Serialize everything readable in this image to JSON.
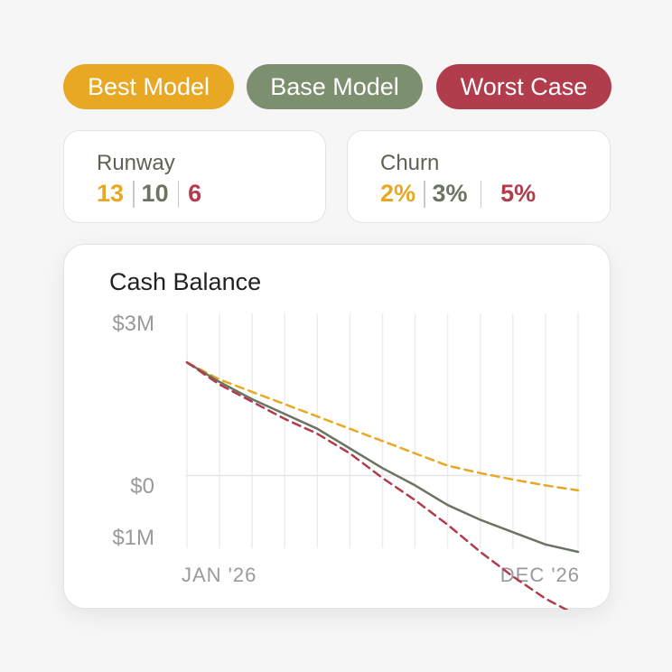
{
  "legend": [
    {
      "key": "best",
      "label": "Best Model",
      "color": "#e8a823"
    },
    {
      "key": "base",
      "label": "Base Model",
      "color": "#7c8f6f"
    },
    {
      "key": "worst",
      "label": "Worst Case",
      "color": "#b13c4c"
    }
  ],
  "stats": {
    "runway": {
      "title": "Runway",
      "values": [
        "13",
        "10",
        "6"
      ]
    },
    "churn": {
      "title": "Churn",
      "values": [
        "2%",
        "3%",
        "5%"
      ]
    }
  },
  "chart_data": {
    "type": "line",
    "title": "Cash Balance",
    "ytick_labels": [
      "$3M",
      "$0",
      "$1M"
    ],
    "xtick_labels": [
      "JAN '26",
      "DEC '26"
    ],
    "x": [
      1,
      2,
      3,
      4,
      5,
      6,
      7,
      8,
      9,
      10,
      11,
      12,
      13
    ],
    "ylim": [
      -1.0,
      3.0
    ],
    "grid": true,
    "series": [
      {
        "name": "Best Model",
        "color": "#e8a823",
        "dash": "dashed",
        "values": [
          2.3,
          1.95,
          1.7,
          1.45,
          1.2,
          0.95,
          0.7,
          0.45,
          0.2,
          0.05,
          -0.08,
          -0.2,
          -0.3
        ]
      },
      {
        "name": "Base Model",
        "color": "#6b7363",
        "dash": "solid",
        "values": [
          2.3,
          1.9,
          1.55,
          1.25,
          0.95,
          0.55,
          0.15,
          -0.2,
          -0.6,
          -0.9,
          -1.15,
          -1.4,
          -1.55
        ]
      },
      {
        "name": "Worst Case",
        "color": "#b13c4c",
        "dash": "dashed",
        "values": [
          2.3,
          1.85,
          1.5,
          1.15,
          0.85,
          0.45,
          -0.05,
          -0.5,
          -1.0,
          -1.55,
          -2.05,
          -2.5,
          -2.85
        ]
      }
    ]
  }
}
